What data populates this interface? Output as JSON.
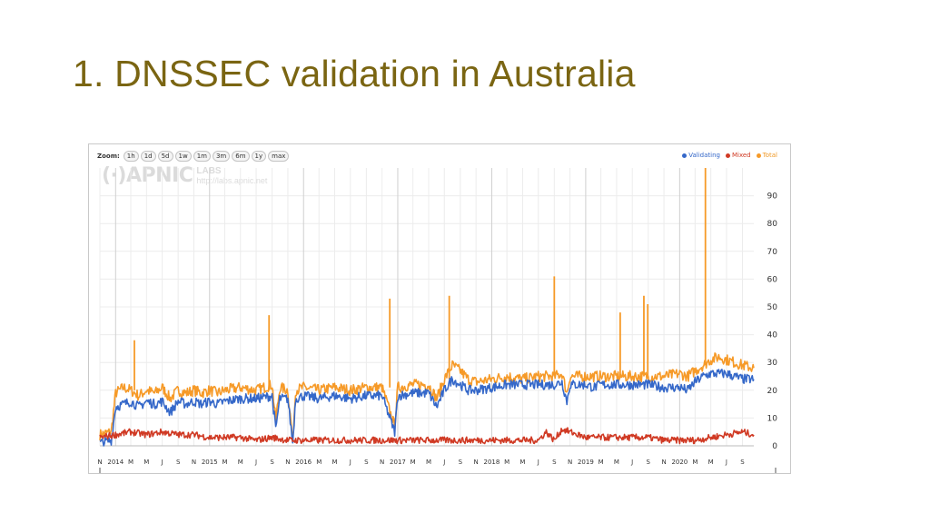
{
  "slide": {
    "title": "1. DNSSEC validation in Australia"
  },
  "zoom": {
    "label": "Zoom:",
    "buttons": [
      "1h",
      "1d",
      "5d",
      "1w",
      "1m",
      "3m",
      "6m",
      "1y",
      "max"
    ]
  },
  "watermark": {
    "logo": "(·)APNIC",
    "labs": "LABS",
    "url": "http://labs.apnic.net"
  },
  "colors": {
    "validating": "#3568c9",
    "mixed": "#d03a24",
    "total": "#f69a28",
    "title": "#7a6512"
  },
  "chart_data": {
    "type": "line",
    "title": "",
    "xlabel": "",
    "ylabel": "",
    "x_range": [
      "2013-11-01",
      "2020-10-15"
    ],
    "ylim": [
      0,
      100
    ],
    "grid": true,
    "legend_position": "top-right",
    "y_ticks": [
      0,
      10,
      20,
      30,
      40,
      50,
      60,
      70,
      80,
      90
    ],
    "x_ticks": [
      {
        "label": "N",
        "date": "2013-11-01"
      },
      {
        "label": "2014",
        "date": "2014-01-01"
      },
      {
        "label": "M",
        "date": "2014-03-01"
      },
      {
        "label": "M",
        "date": "2014-05-01"
      },
      {
        "label": "J",
        "date": "2014-07-01"
      },
      {
        "label": "S",
        "date": "2014-09-01"
      },
      {
        "label": "N",
        "date": "2014-11-01"
      },
      {
        "label": "2015",
        "date": "2015-01-01"
      },
      {
        "label": "M",
        "date": "2015-03-01"
      },
      {
        "label": "M",
        "date": "2015-05-01"
      },
      {
        "label": "J",
        "date": "2015-07-01"
      },
      {
        "label": "S",
        "date": "2015-09-01"
      },
      {
        "label": "N",
        "date": "2015-11-01"
      },
      {
        "label": "2016",
        "date": "2016-01-01"
      },
      {
        "label": "M",
        "date": "2016-03-01"
      },
      {
        "label": "M",
        "date": "2016-05-01"
      },
      {
        "label": "J",
        "date": "2016-07-01"
      },
      {
        "label": "S",
        "date": "2016-09-01"
      },
      {
        "label": "N",
        "date": "2016-11-01"
      },
      {
        "label": "2017",
        "date": "2017-01-01"
      },
      {
        "label": "M",
        "date": "2017-03-01"
      },
      {
        "label": "M",
        "date": "2017-05-01"
      },
      {
        "label": "J",
        "date": "2017-07-01"
      },
      {
        "label": "S",
        "date": "2017-09-01"
      },
      {
        "label": "N",
        "date": "2017-11-01"
      },
      {
        "label": "2018",
        "date": "2018-01-01"
      },
      {
        "label": "M",
        "date": "2018-03-01"
      },
      {
        "label": "M",
        "date": "2018-05-01"
      },
      {
        "label": "J",
        "date": "2018-07-01"
      },
      {
        "label": "S",
        "date": "2018-09-01"
      },
      {
        "label": "N",
        "date": "2018-11-01"
      },
      {
        "label": "2019",
        "date": "2019-01-01"
      },
      {
        "label": "M",
        "date": "2019-03-01"
      },
      {
        "label": "M",
        "date": "2019-05-01"
      },
      {
        "label": "J",
        "date": "2019-07-01"
      },
      {
        "label": "S",
        "date": "2019-09-01"
      },
      {
        "label": "N",
        "date": "2019-11-01"
      },
      {
        "label": "2020",
        "date": "2020-01-01"
      },
      {
        "label": "M",
        "date": "2020-03-01"
      },
      {
        "label": "M",
        "date": "2020-05-01"
      },
      {
        "label": "J",
        "date": "2020-07-01"
      },
      {
        "label": "S",
        "date": "2020-09-01"
      }
    ],
    "series": [
      {
        "name": "Validating",
        "color": "#3568c9",
        "points": [
          [
            "2013-11-01",
            1
          ],
          [
            "2013-12-15",
            2
          ],
          [
            "2014-01-01",
            14
          ],
          [
            "2014-02-01",
            15
          ],
          [
            "2014-03-01",
            16
          ],
          [
            "2014-04-01",
            14
          ],
          [
            "2014-05-01",
            16
          ],
          [
            "2014-06-01",
            15
          ],
          [
            "2014-07-01",
            16
          ],
          [
            "2014-08-01",
            12
          ],
          [
            "2014-09-01",
            16
          ],
          [
            "2014-10-01",
            15
          ],
          [
            "2014-11-01",
            16
          ],
          [
            "2014-12-01",
            15
          ],
          [
            "2015-01-01",
            16
          ],
          [
            "2015-02-01",
            15
          ],
          [
            "2015-03-01",
            16
          ],
          [
            "2015-05-01",
            17
          ],
          [
            "2015-07-01",
            17
          ],
          [
            "2015-09-01",
            18
          ],
          [
            "2015-09-15",
            6
          ],
          [
            "2015-10-01",
            17
          ],
          [
            "2015-11-01",
            17
          ],
          [
            "2015-11-20",
            1
          ],
          [
            "2015-12-01",
            17
          ],
          [
            "2016-01-01",
            18
          ],
          [
            "2016-03-01",
            17
          ],
          [
            "2016-05-01",
            18
          ],
          [
            "2016-07-01",
            17
          ],
          [
            "2016-09-01",
            18
          ],
          [
            "2016-11-01",
            18
          ],
          [
            "2016-12-20",
            5
          ],
          [
            "2017-01-01",
            18
          ],
          [
            "2017-03-01",
            19
          ],
          [
            "2017-05-01",
            19
          ],
          [
            "2017-06-01",
            14
          ],
          [
            "2017-07-01",
            20
          ],
          [
            "2017-08-01",
            24
          ],
          [
            "2017-09-01",
            22
          ],
          [
            "2017-10-01",
            20
          ],
          [
            "2017-11-01",
            20
          ],
          [
            "2018-01-01",
            21
          ],
          [
            "2018-03-01",
            22
          ],
          [
            "2018-05-01",
            22
          ],
          [
            "2018-07-01",
            22
          ],
          [
            "2018-09-01",
            22
          ],
          [
            "2018-10-01",
            23
          ],
          [
            "2018-10-20",
            16
          ],
          [
            "2018-11-01",
            22
          ],
          [
            "2019-01-01",
            22
          ],
          [
            "2019-02-01",
            21
          ],
          [
            "2019-03-01",
            22
          ],
          [
            "2019-05-01",
            22
          ],
          [
            "2019-07-01",
            22
          ],
          [
            "2019-09-01",
            22
          ],
          [
            "2019-11-01",
            21
          ],
          [
            "2020-01-01",
            21
          ],
          [
            "2020-02-01",
            20
          ],
          [
            "2020-03-01",
            23
          ],
          [
            "2020-04-01",
            25
          ],
          [
            "2020-05-01",
            26
          ],
          [
            "2020-06-01",
            26
          ],
          [
            "2020-07-01",
            26
          ],
          [
            "2020-08-01",
            25
          ],
          [
            "2020-09-01",
            24
          ],
          [
            "2020-10-15",
            24
          ]
        ]
      },
      {
        "name": "Mixed",
        "color": "#d03a24",
        "points": [
          [
            "2013-11-01",
            3
          ],
          [
            "2014-01-01",
            4
          ],
          [
            "2014-03-01",
            5
          ],
          [
            "2014-05-01",
            4
          ],
          [
            "2014-07-01",
            5
          ],
          [
            "2014-09-01",
            4
          ],
          [
            "2014-11-01",
            4
          ],
          [
            "2015-01-01",
            3
          ],
          [
            "2015-03-01",
            3
          ],
          [
            "2015-05-01",
            3
          ],
          [
            "2015-07-01",
            2
          ],
          [
            "2015-09-01",
            3
          ],
          [
            "2015-11-01",
            2
          ],
          [
            "2016-01-01",
            2
          ],
          [
            "2016-03-01",
            2
          ],
          [
            "2016-05-01",
            2
          ],
          [
            "2016-07-01",
            2
          ],
          [
            "2016-09-01",
            2
          ],
          [
            "2016-11-01",
            2
          ],
          [
            "2017-01-01",
            2
          ],
          [
            "2017-03-01",
            2
          ],
          [
            "2017-05-01",
            2
          ],
          [
            "2017-07-01",
            2
          ],
          [
            "2017-09-01",
            2
          ],
          [
            "2017-11-01",
            2
          ],
          [
            "2018-01-01",
            2
          ],
          [
            "2018-03-01",
            2
          ],
          [
            "2018-05-01",
            2
          ],
          [
            "2018-07-01",
            2
          ],
          [
            "2018-08-01",
            5
          ],
          [
            "2018-09-01",
            2
          ],
          [
            "2018-10-01",
            6
          ],
          [
            "2018-11-01",
            5
          ],
          [
            "2019-01-01",
            3
          ],
          [
            "2019-03-01",
            3
          ],
          [
            "2019-05-01",
            3
          ],
          [
            "2019-07-01",
            3
          ],
          [
            "2019-09-01",
            3
          ],
          [
            "2019-11-01",
            2
          ],
          [
            "2020-01-01",
            2
          ],
          [
            "2020-03-01",
            2
          ],
          [
            "2020-05-01",
            3
          ],
          [
            "2020-07-01",
            4
          ],
          [
            "2020-09-01",
            5
          ],
          [
            "2020-10-15",
            4
          ]
        ]
      },
      {
        "name": "Total",
        "color": "#f69a28",
        "points": [
          [
            "2013-11-01",
            4
          ],
          [
            "2013-12-15",
            5
          ],
          [
            "2014-01-01",
            19
          ],
          [
            "2014-02-01",
            21
          ],
          [
            "2014-03-01",
            20
          ],
          [
            "2014-04-01",
            18
          ],
          [
            "2014-05-01",
            20
          ],
          [
            "2014-06-01",
            19
          ],
          [
            "2014-07-01",
            21
          ],
          [
            "2014-08-01",
            17
          ],
          [
            "2014-09-01",
            20
          ],
          [
            "2014-10-01",
            19
          ],
          [
            "2014-11-01",
            20
          ],
          [
            "2014-12-01",
            19
          ],
          [
            "2015-01-01",
            20
          ],
          [
            "2015-02-01",
            19
          ],
          [
            "2015-03-01",
            20
          ],
          [
            "2015-05-01",
            21
          ],
          [
            "2015-07-01",
            20
          ],
          [
            "2015-09-01",
            22
          ],
          [
            "2015-09-15",
            9
          ],
          [
            "2015-10-01",
            21
          ],
          [
            "2015-11-01",
            20
          ],
          [
            "2015-11-20",
            2
          ],
          [
            "2015-12-01",
            20
          ],
          [
            "2016-01-01",
            21
          ],
          [
            "2016-03-01",
            20
          ],
          [
            "2016-05-01",
            21
          ],
          [
            "2016-07-01",
            20
          ],
          [
            "2016-09-01",
            21
          ],
          [
            "2016-11-01",
            21
          ],
          [
            "2016-12-20",
            7
          ],
          [
            "2017-01-01",
            21
          ],
          [
            "2017-03-01",
            22
          ],
          [
            "2017-05-01",
            22
          ],
          [
            "2017-06-01",
            17
          ],
          [
            "2017-07-01",
            24
          ],
          [
            "2017-08-01",
            29
          ],
          [
            "2017-09-01",
            27
          ],
          [
            "2017-10-01",
            24
          ],
          [
            "2017-11-01",
            23
          ],
          [
            "2018-01-01",
            24
          ],
          [
            "2018-03-01",
            25
          ],
          [
            "2018-05-01",
            24
          ],
          [
            "2018-07-01",
            25
          ],
          [
            "2018-09-01",
            25
          ],
          [
            "2018-10-01",
            26
          ],
          [
            "2018-10-20",
            19
          ],
          [
            "2018-11-01",
            25
          ],
          [
            "2019-01-01",
            25
          ],
          [
            "2019-02-01",
            25
          ],
          [
            "2019-03-01",
            25
          ],
          [
            "2019-05-01",
            25
          ],
          [
            "2019-07-01",
            25
          ],
          [
            "2019-09-01",
            25
          ],
          [
            "2019-11-01",
            25
          ],
          [
            "2020-01-01",
            26
          ],
          [
            "2020-02-01",
            25
          ],
          [
            "2020-03-01",
            27
          ],
          [
            "2020-04-01",
            29
          ],
          [
            "2020-05-01",
            31
          ],
          [
            "2020-06-01",
            32
          ],
          [
            "2020-07-01",
            31
          ],
          [
            "2020-08-01",
            30
          ],
          [
            "2020-09-01",
            29
          ],
          [
            "2020-10-15",
            28
          ]
        ],
        "spikes": [
          [
            "2014-03-15",
            38
          ],
          [
            "2015-08-20",
            47
          ],
          [
            "2016-12-01",
            53
          ],
          [
            "2017-07-20",
            54
          ],
          [
            "2018-09-01",
            61
          ],
          [
            "2019-05-15",
            48
          ],
          [
            "2019-08-15",
            54
          ],
          [
            "2019-08-30",
            51
          ],
          [
            "2020-04-10",
            100
          ]
        ]
      }
    ]
  }
}
